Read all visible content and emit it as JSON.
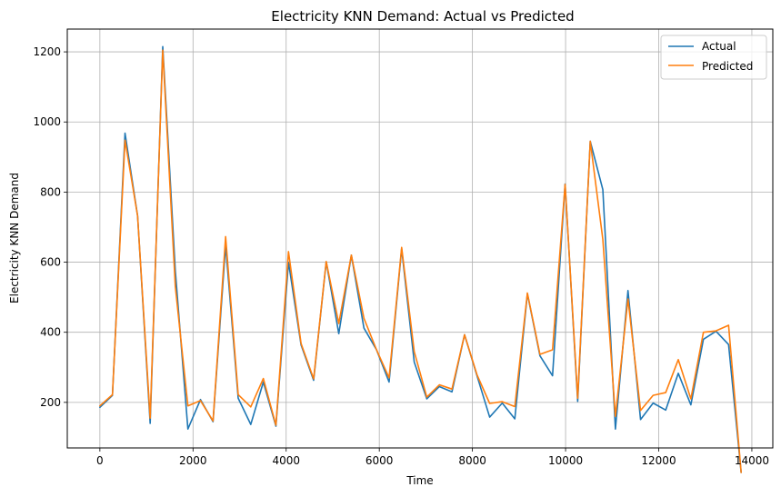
{
  "chart_data": {
    "type": "line",
    "title": "Electricity KNN Demand: Actual vs Predicted",
    "xlabel": "Time",
    "ylabel": "Electricity KNN Demand",
    "xlim": [
      -700,
      14450
    ],
    "ylim": [
      70,
      1265
    ],
    "xticks": [
      0,
      2000,
      4000,
      6000,
      8000,
      10000,
      12000,
      14000
    ],
    "yticks": [
      200,
      400,
      600,
      800,
      1000,
      1200
    ],
    "grid": true,
    "legend_position": "top-right",
    "x": [
      0,
      270,
      540,
      810,
      1080,
      1350,
      1620,
      1890,
      2160,
      2430,
      2700,
      2970,
      3240,
      3510,
      3780,
      4050,
      4320,
      4590,
      4860,
      5130,
      5400,
      5670,
      5940,
      6210,
      6480,
      6750,
      7020,
      7290,
      7560,
      7830,
      8100,
      8370,
      8640,
      8910,
      9180,
      9450,
      9720,
      9990,
      10260,
      10530,
      10800,
      11070,
      11340,
      11610,
      11880,
      12150,
      12420,
      12690,
      12960,
      13230,
      13500,
      13770
    ],
    "series": [
      {
        "name": "Actual",
        "color": "#1f77b4",
        "values": [
          186,
          220,
          968,
          732,
          140,
          1215,
          575,
          124,
          208,
          145,
          648,
          212,
          137,
          258,
          132,
          600,
          364,
          263,
          601,
          396,
          620,
          412,
          350,
          258,
          638,
          315,
          210,
          245,
          230,
          393,
          275,
          158,
          198,
          153,
          510,
          333,
          276,
          823,
          203,
          945,
          807,
          124,
          519,
          151,
          198,
          178,
          283,
          193,
          380,
          403,
          365,
          0
        ]
      },
      {
        "name": "Predicted",
        "color": "#ff7f0e",
        "values": [
          190,
          222,
          948,
          732,
          155,
          1205,
          530,
          190,
          205,
          147,
          673,
          222,
          187,
          268,
          135,
          630,
          368,
          267,
          602,
          425,
          620,
          440,
          350,
          270,
          642,
          345,
          215,
          250,
          238,
          393,
          278,
          197,
          202,
          188,
          512,
          337,
          350,
          822,
          212,
          945,
          665,
          160,
          495,
          177,
          220,
          228,
          322,
          210,
          400,
          404,
          420,
          0
        ]
      }
    ]
  }
}
